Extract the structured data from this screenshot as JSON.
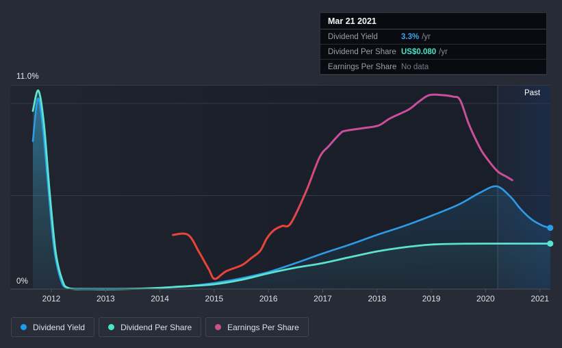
{
  "tooltip": {
    "date": "Mar 21 2021",
    "rows": [
      {
        "label": "Dividend Yield",
        "value": "3.3%",
        "suffix": "/yr",
        "value_color": "#3ba3ea"
      },
      {
        "label": "Dividend Per Share",
        "value": "US$0.080",
        "suffix": "/yr",
        "value_color": "#49e3cb"
      },
      {
        "label": "Earnings Per Share",
        "value": "No data",
        "suffix": "",
        "value_color": "#767c85"
      }
    ]
  },
  "chart": {
    "y_axis": {
      "top_label": "11.0%",
      "bottom_label": "0%"
    },
    "x_axis": {
      "labels": [
        "2012",
        "2013",
        "2014",
        "2015",
        "2016",
        "2017",
        "2018",
        "2019",
        "2020",
        "2021"
      ]
    },
    "past_label": "Past",
    "legend": [
      {
        "label": "Dividend Yield",
        "color": "#1d9ceb"
      },
      {
        "label": "Dividend Per Share",
        "color": "#45e5c5"
      },
      {
        "label": "Earnings Per Share",
        "color": "#cc5090"
      }
    ]
  },
  "chart_data": {
    "type": "line",
    "x_ticks": [
      2012,
      2013,
      2014,
      2015,
      2016,
      2017,
      2018,
      2019,
      2020,
      2021
    ],
    "x_range": [
      2011.25,
      2021.21
    ],
    "y_axis": {
      "min": 0,
      "max": 11,
      "unit": "%",
      "gridlines_pct": [
        0,
        5,
        10,
        11
      ],
      "top_tick_label": "11.0%",
      "bottom_tick_label": "0%"
    },
    "past_region": {
      "label": "Past",
      "start_year": 2020.22,
      "end_year": 2021.21
    },
    "note": "All series plotted against the percent axis; Dividend Per Share and Earnings Per Share use hidden scales (positions read from chart in percent-axis units).",
    "series": [
      {
        "id": "yield",
        "name": "Dividend Yield",
        "color": "#2c9ce6",
        "area": true,
        "current_value": "3.3% /yr",
        "points": [
          [
            2011.66,
            7.97
          ],
          [
            2011.75,
            10.26
          ],
          [
            2011.84,
            8.8
          ],
          [
            2011.94,
            5.6
          ],
          [
            2012.05,
            2.2
          ],
          [
            2012.18,
            0.45
          ],
          [
            2012.3,
            0.06
          ],
          [
            2012.6,
            0.02
          ],
          [
            2013.5,
            0.02
          ],
          [
            2014.0,
            0.06
          ],
          [
            2014.5,
            0.16
          ],
          [
            2015.0,
            0.33
          ],
          [
            2015.5,
            0.58
          ],
          [
            2016.0,
            0.92
          ],
          [
            2016.5,
            1.4
          ],
          [
            2017.0,
            1.92
          ],
          [
            2017.5,
            2.4
          ],
          [
            2018.0,
            2.92
          ],
          [
            2018.5,
            3.4
          ],
          [
            2019.0,
            3.95
          ],
          [
            2019.5,
            4.55
          ],
          [
            2019.9,
            5.2
          ],
          [
            2020.2,
            5.54
          ],
          [
            2020.45,
            5.0
          ],
          [
            2020.65,
            4.3
          ],
          [
            2020.85,
            3.75
          ],
          [
            2021.05,
            3.42
          ],
          [
            2021.19,
            3.3
          ]
        ],
        "end_dot": true
      },
      {
        "id": "dps",
        "name": "Dividend Per Share",
        "color": "#5ce3cf",
        "area": true,
        "current_value": "US$0.080 /yr",
        "points": [
          [
            2011.66,
            9.6
          ],
          [
            2011.76,
            10.7
          ],
          [
            2011.86,
            9.0
          ],
          [
            2011.97,
            5.2
          ],
          [
            2012.08,
            2.0
          ],
          [
            2012.2,
            0.5
          ],
          [
            2012.32,
            0.05
          ],
          [
            2012.7,
            0.0
          ],
          [
            2013.3,
            0.0
          ],
          [
            2013.8,
            0.04
          ],
          [
            2014.3,
            0.12
          ],
          [
            2015.0,
            0.26
          ],
          [
            2015.5,
            0.5
          ],
          [
            2016.0,
            0.85
          ],
          [
            2016.5,
            1.15
          ],
          [
            2017.0,
            1.4
          ],
          [
            2017.5,
            1.72
          ],
          [
            2018.0,
            2.03
          ],
          [
            2018.5,
            2.25
          ],
          [
            2019.0,
            2.4
          ],
          [
            2019.5,
            2.44
          ],
          [
            2020.0,
            2.45
          ],
          [
            2020.6,
            2.45
          ],
          [
            2021.19,
            2.45
          ]
        ],
        "end_dot": true
      },
      {
        "id": "eps",
        "name": "Earnings Per Share",
        "color": "#c94f9b",
        "negative_color": "#e8443a",
        "current_value": "No data",
        "points": [
          [
            2014.24,
            2.92
          ],
          [
            2014.52,
            2.92
          ],
          [
            2014.72,
            2.0
          ],
          [
            2014.9,
            1.07
          ],
          [
            2015.01,
            0.55
          ],
          [
            2015.22,
            0.96
          ],
          [
            2015.51,
            1.29
          ],
          [
            2015.68,
            1.66
          ],
          [
            2015.85,
            2.07
          ],
          [
            2015.97,
            2.73
          ],
          [
            2016.1,
            3.17
          ],
          [
            2016.25,
            3.4
          ],
          [
            2016.41,
            3.54
          ],
          [
            2016.69,
            5.24
          ],
          [
            2016.94,
            7.09
          ],
          [
            2017.11,
            7.7
          ],
          [
            2017.32,
            8.38
          ],
          [
            2017.42,
            8.53
          ],
          [
            2017.74,
            8.67
          ],
          [
            2018.03,
            8.82
          ],
          [
            2018.24,
            9.2
          ],
          [
            2018.58,
            9.67
          ],
          [
            2018.77,
            10.1
          ],
          [
            2018.96,
            10.45
          ],
          [
            2019.21,
            10.45
          ],
          [
            2019.4,
            10.37
          ],
          [
            2019.53,
            10.19
          ],
          [
            2019.69,
            8.9
          ],
          [
            2019.88,
            7.7
          ],
          [
            2020.01,
            7.09
          ],
          [
            2020.22,
            6.35
          ],
          [
            2020.39,
            6.05
          ],
          [
            2020.49,
            5.87
          ]
        ],
        "end_dot": false
      }
    ]
  }
}
